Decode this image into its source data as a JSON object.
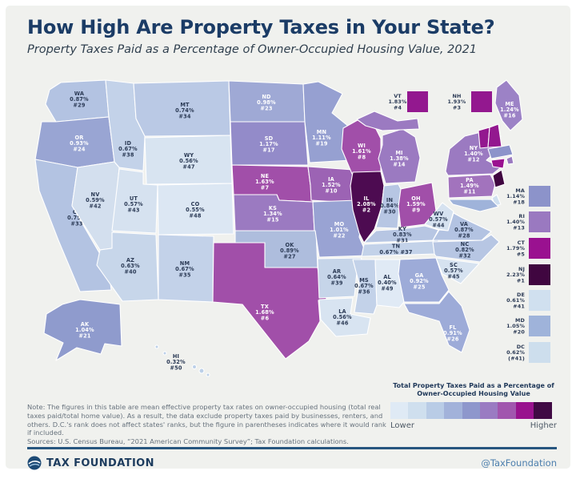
{
  "header": {
    "title": "How High Are Property Taxes in Your State?",
    "subtitle": "Property Taxes Paid as a Percentage of Owner-Occupied Housing Value, 2021"
  },
  "states": [
    {
      "abbr": "WA",
      "lines": [
        "WA",
        "0.87%",
        "#29"
      ],
      "fill": "#b3c3e2",
      "light": false
    },
    {
      "abbr": "OR",
      "lines": [
        "OR",
        "0.93%",
        "#24"
      ],
      "fill": "#99a5d3",
      "light": true
    },
    {
      "abbr": "CA",
      "lines": [
        "CA",
        "0.75%",
        "#33"
      ],
      "fill": "#b3c3e2",
      "light": false
    },
    {
      "abbr": "NV",
      "lines": [
        "NV",
        "0.59%",
        "#42"
      ],
      "fill": "#d3dfee",
      "light": false
    },
    {
      "abbr": "ID",
      "lines": [
        "ID",
        "0.67%",
        "#38"
      ],
      "fill": "#c3d2e9",
      "light": false
    },
    {
      "abbr": "MT",
      "lines": [
        "MT",
        "0.74%",
        "#34"
      ],
      "fill": "#bac9e5",
      "light": false
    },
    {
      "abbr": "WY",
      "lines": [
        "WY",
        "0.56%",
        "#47"
      ],
      "fill": "#d8e4f1",
      "light": false
    },
    {
      "abbr": "UT",
      "lines": [
        "UT",
        "0.57%",
        "#43"
      ],
      "fill": "#d6e2f0",
      "light": false
    },
    {
      "abbr": "CO",
      "lines": [
        "CO",
        "0.55%",
        "#48"
      ],
      "fill": "#dce7f3",
      "light": false
    },
    {
      "abbr": "AZ",
      "lines": [
        "AZ",
        "0.63%",
        "#40"
      ],
      "fill": "#c7d6ea",
      "light": false
    },
    {
      "abbr": "NM",
      "lines": [
        "NM",
        "0.67%",
        "#35"
      ],
      "fill": "#c3d2e9",
      "light": false
    },
    {
      "abbr": "ND",
      "lines": [
        "ND",
        "0.98%",
        "#23"
      ],
      "fill": "#9fa9d5",
      "light": true
    },
    {
      "abbr": "SD",
      "lines": [
        "SD",
        "1.17%",
        "#17"
      ],
      "fill": "#938bc9",
      "light": true
    },
    {
      "abbr": "NE",
      "lines": [
        "NE",
        "1.63%",
        "#7"
      ],
      "fill": "#a14fa9",
      "light": true
    },
    {
      "abbr": "KS",
      "lines": [
        "KS",
        "1.34%",
        "#15"
      ],
      "fill": "#9b7ac1",
      "light": true
    },
    {
      "abbr": "OK",
      "lines": [
        "OK",
        "0.89%",
        "#27"
      ],
      "fill": "#aebddd",
      "light": false
    },
    {
      "abbr": "TX",
      "lines": [
        "TX",
        "1.68%",
        "#6"
      ],
      "fill": "#a14fa9",
      "light": true
    },
    {
      "abbr": "MN",
      "lines": [
        "MN",
        "1.11%",
        "#19"
      ],
      "fill": "#96a0d1",
      "light": true
    },
    {
      "abbr": "IA",
      "lines": [
        "IA",
        "1.52%",
        "#10"
      ],
      "fill": "#9c63b4",
      "light": true
    },
    {
      "abbr": "MO",
      "lines": [
        "MO",
        "1.01%",
        "#22"
      ],
      "fill": "#99a3d3",
      "light": true
    },
    {
      "abbr": "AR",
      "lines": [
        "AR",
        "0.64%",
        "#39"
      ],
      "fill": "#c6d5e9",
      "light": false
    },
    {
      "abbr": "LA",
      "lines": [
        "LA",
        "0.56%",
        "#46"
      ],
      "fill": "#d8e4f1",
      "light": false
    },
    {
      "abbr": "WI",
      "lines": [
        "WI",
        "1.61%",
        "#8"
      ],
      "fill": "#a14fa9",
      "light": true
    },
    {
      "abbr": "IL",
      "lines": [
        "IL",
        "2.08%",
        "#2"
      ],
      "fill": "#4d0b51",
      "light": true
    },
    {
      "abbr": "MI",
      "lines": [
        "MI",
        "1.38%",
        "#14"
      ],
      "fill": "#9b7ac1",
      "light": true
    },
    {
      "abbr": "IN",
      "lines": [
        "IN",
        "0.84%",
        "#30"
      ],
      "fill": "#b7c6e3",
      "light": false
    },
    {
      "abbr": "OH",
      "lines": [
        "OH",
        "1.59%",
        "#9"
      ],
      "fill": "#a14fa9",
      "light": true
    },
    {
      "abbr": "KY",
      "lines": [
        "KY",
        "0.83%",
        "#31"
      ],
      "fill": "#b7c6e3",
      "light": false
    },
    {
      "abbr": "TN",
      "lines": [
        "TN",
        "0.67% #37"
      ],
      "fill": "#c3d2e9",
      "light": false
    },
    {
      "abbr": "MS",
      "lines": [
        "MS",
        "0.67%",
        "#36"
      ],
      "fill": "#c3d2e9",
      "light": false
    },
    {
      "abbr": "AL",
      "lines": [
        "AL",
        "0.40%",
        "#49"
      ],
      "fill": "#e0eaf5",
      "light": false
    },
    {
      "abbr": "GA",
      "lines": [
        "GA",
        "0.92%",
        "#25"
      ],
      "fill": "#9dabd8",
      "light": true
    },
    {
      "abbr": "FL",
      "lines": [
        "FL",
        "0.91%",
        "#26"
      ],
      "fill": "#9dabd8",
      "light": true
    },
    {
      "abbr": "SC",
      "lines": [
        "SC",
        "0.57%",
        "#45"
      ],
      "fill": "#d6e2f0",
      "light": false
    },
    {
      "abbr": "NC",
      "lines": [
        "NC",
        "0.82%",
        "#32"
      ],
      "fill": "#b7c6e3",
      "light": false
    },
    {
      "abbr": "VA",
      "lines": [
        "VA",
        "0.87%",
        "#28"
      ],
      "fill": "#b3c3e2",
      "light": false
    },
    {
      "abbr": "WV",
      "lines": [
        "WV",
        "0.57%",
        "#44"
      ],
      "fill": "#d6e2f0",
      "light": false
    },
    {
      "abbr": "PA",
      "lines": [
        "PA",
        "1.49%",
        "#11"
      ],
      "fill": "#a273bd",
      "light": true
    },
    {
      "abbr": "NY",
      "lines": [
        "NY",
        "1.40%",
        "#12"
      ],
      "fill": "#9b7ac1",
      "light": true
    },
    {
      "abbr": "ME",
      "lines": [
        "ME",
        "1.24%",
        "#16"
      ],
      "fill": "#9c82c6",
      "light": true
    },
    {
      "abbr": "AK",
      "lines": [
        "AK",
        "1.04%",
        "#21"
      ],
      "fill": "#8f9bcd",
      "light": true
    },
    {
      "abbr": "HI",
      "lines": [
        "HI",
        "0.32%",
        "#50"
      ],
      "fill": "#dfeaf5",
      "light": false
    },
    {
      "abbr": "VT",
      "lines": [],
      "fill": "#93188f",
      "light": true
    },
    {
      "abbr": "NH",
      "lines": [],
      "fill": "#93188f",
      "light": true
    },
    {
      "abbr": "MA",
      "lines": [],
      "fill": "#8c93ca",
      "light": true
    },
    {
      "abbr": "RI",
      "lines": [],
      "fill": "#9a79c0",
      "light": true
    },
    {
      "abbr": "CT",
      "lines": [],
      "fill": "#9a1190",
      "light": true
    },
    {
      "abbr": "NJ",
      "lines": [],
      "fill": "#400640",
      "light": true
    },
    {
      "abbr": "DE",
      "lines": [],
      "fill": "#d0e0ef",
      "light": false
    },
    {
      "abbr": "MD",
      "lines": [],
      "fill": "#9fb3da",
      "light": false
    }
  ],
  "callouts": [
    {
      "abbr": "VT",
      "value": "1.83%",
      "rank": "#4",
      "fill": "#93188f"
    },
    {
      "abbr": "NH",
      "value": "1.93%",
      "rank": "#3",
      "fill": "#93188f"
    }
  ],
  "east_column": [
    {
      "abbr": "MA",
      "value": "1.14%",
      "rank": "#18",
      "fill": "#8c93ca"
    },
    {
      "abbr": "RI",
      "value": "1.40%",
      "rank": "#13",
      "fill": "#9a79c0"
    },
    {
      "abbr": "CT",
      "value": "1.79%",
      "rank": "#5",
      "fill": "#9a1190"
    },
    {
      "abbr": "NJ",
      "value": "2.23%",
      "rank": "#1",
      "fill": "#400640"
    },
    {
      "abbr": "DE",
      "value": "0.61%",
      "rank": "#41",
      "fill": "#d0e0ef"
    },
    {
      "abbr": "MD",
      "value": "1.05%",
      "rank": "#20",
      "fill": "#9fb3da"
    },
    {
      "abbr": "DC",
      "value": "0.62%",
      "rank": "(#41)",
      "fill": "#cddeed"
    }
  ],
  "legend": {
    "title": "Total Property Taxes Paid as a Percentage of Owner-Occupied Housing Value",
    "low": "Lower",
    "high": "Higher",
    "colors": [
      "#dfeaf5",
      "#cfdfee",
      "#b9cce6",
      "#a2b2da",
      "#8e97cc",
      "#9a7bc2",
      "#a156ae",
      "#99128e",
      "#400a44"
    ]
  },
  "note": {
    "text": "Note: The figures in this table are mean effective property tax rates on owner-occupied housing (total real taxes paid/total home value). As a result, the data exclude property taxes paid by businesses, renters, and others. D.C.'s rank does not affect states' ranks, but the figure in parentheses indicates where it would rank if included.",
    "sources": "Sources: U.S. Census Bureau, “2021 American Community Survey”; Tax Foundation calculations."
  },
  "footer": {
    "brand": "TAX FOUNDATION",
    "handle": "@TaxFoundation"
  },
  "chart_data": {
    "type": "heatmap",
    "variant": "us-choropleth-map",
    "title": "How High Are Property Taxes in Your State?",
    "subtitle": "Property Taxes Paid as a Percentage of Owner-Occupied Housing Value, 2021",
    "unit": "percent of owner-occupied housing value",
    "legend": {
      "low": "Lower",
      "high": "Higher"
    },
    "states": [
      {
        "state": "NJ",
        "rate": 2.23,
        "rank": 1
      },
      {
        "state": "IL",
        "rate": 2.08,
        "rank": 2
      },
      {
        "state": "NH",
        "rate": 1.93,
        "rank": 3
      },
      {
        "state": "VT",
        "rate": 1.83,
        "rank": 4
      },
      {
        "state": "CT",
        "rate": 1.79,
        "rank": 5
      },
      {
        "state": "TX",
        "rate": 1.68,
        "rank": 6
      },
      {
        "state": "NE",
        "rate": 1.63,
        "rank": 7
      },
      {
        "state": "WI",
        "rate": 1.61,
        "rank": 8
      },
      {
        "state": "OH",
        "rate": 1.59,
        "rank": 9
      },
      {
        "state": "IA",
        "rate": 1.52,
        "rank": 10
      },
      {
        "state": "PA",
        "rate": 1.49,
        "rank": 11
      },
      {
        "state": "NY",
        "rate": 1.4,
        "rank": 12
      },
      {
        "state": "RI",
        "rate": 1.4,
        "rank": 13
      },
      {
        "state": "MI",
        "rate": 1.38,
        "rank": 14
      },
      {
        "state": "KS",
        "rate": 1.34,
        "rank": 15
      },
      {
        "state": "ME",
        "rate": 1.24,
        "rank": 16
      },
      {
        "state": "SD",
        "rate": 1.17,
        "rank": 17
      },
      {
        "state": "MA",
        "rate": 1.14,
        "rank": 18
      },
      {
        "state": "MN",
        "rate": 1.11,
        "rank": 19
      },
      {
        "state": "MD",
        "rate": 1.05,
        "rank": 20
      },
      {
        "state": "AK",
        "rate": 1.04,
        "rank": 21
      },
      {
        "state": "MO",
        "rate": 1.01,
        "rank": 22
      },
      {
        "state": "ND",
        "rate": 0.98,
        "rank": 23
      },
      {
        "state": "OR",
        "rate": 0.93,
        "rank": 24
      },
      {
        "state": "GA",
        "rate": 0.92,
        "rank": 25
      },
      {
        "state": "FL",
        "rate": 0.91,
        "rank": 26
      },
      {
        "state": "OK",
        "rate": 0.89,
        "rank": 27
      },
      {
        "state": "VA",
        "rate": 0.87,
        "rank": 28
      },
      {
        "state": "WA",
        "rate": 0.87,
        "rank": 29
      },
      {
        "state": "IN",
        "rate": 0.84,
        "rank": 30
      },
      {
        "state": "KY",
        "rate": 0.83,
        "rank": 31
      },
      {
        "state": "NC",
        "rate": 0.82,
        "rank": 32
      },
      {
        "state": "CA",
        "rate": 0.75,
        "rank": 33
      },
      {
        "state": "MT",
        "rate": 0.74,
        "rank": 34
      },
      {
        "state": "NM",
        "rate": 0.67,
        "rank": 35
      },
      {
        "state": "MS",
        "rate": 0.67,
        "rank": 36
      },
      {
        "state": "TN",
        "rate": 0.67,
        "rank": 37
      },
      {
        "state": "ID",
        "rate": 0.67,
        "rank": 38
      },
      {
        "state": "AR",
        "rate": 0.64,
        "rank": 39
      },
      {
        "state": "AZ",
        "rate": 0.63,
        "rank": 40
      },
      {
        "state": "DE",
        "rate": 0.61,
        "rank": 41
      },
      {
        "state": "NV",
        "rate": 0.59,
        "rank": 42
      },
      {
        "state": "UT",
        "rate": 0.57,
        "rank": 43
      },
      {
        "state": "WV",
        "rate": 0.57,
        "rank": 44
      },
      {
        "state": "SC",
        "rate": 0.57,
        "rank": 45
      },
      {
        "state": "LA",
        "rate": 0.56,
        "rank": 46
      },
      {
        "state": "WY",
        "rate": 0.56,
        "rank": 47
      },
      {
        "state": "CO",
        "rate": 0.55,
        "rank": 48
      },
      {
        "state": "AL",
        "rate": 0.4,
        "rank": 49
      },
      {
        "state": "HI",
        "rate": 0.32,
        "rank": 50
      },
      {
        "state": "DC",
        "rate": 0.62,
        "rank": "(41)"
      }
    ]
  }
}
